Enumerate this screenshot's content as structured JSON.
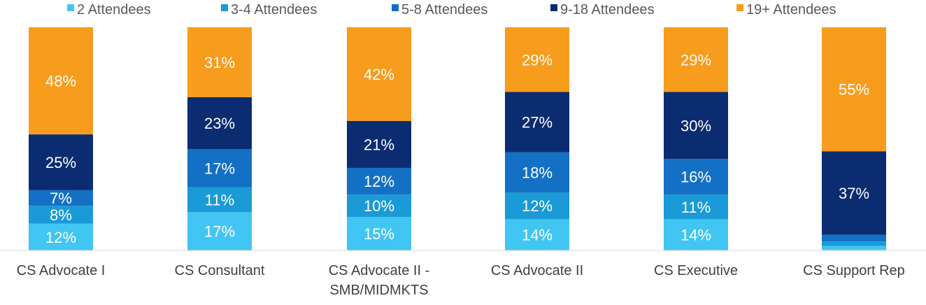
{
  "chart_data": {
    "type": "bar",
    "stacked": true,
    "percent_stacked": true,
    "legend_position": "top",
    "categories": [
      [
        "CS Advocate I"
      ],
      [
        "CS Consultant"
      ],
      [
        "CS Advocate II -",
        "SMB/MIDMKTS"
      ],
      [
        "CS Advocate II"
      ],
      [
        "CS Executive"
      ],
      [
        "CS Support Rep"
      ]
    ],
    "series": [
      {
        "name": "2 Attendees",
        "color": "#41c5f2",
        "label_color": "#ffffff",
        "values": [
          12,
          17,
          15,
          14,
          14,
          2
        ],
        "labels": [
          "12%",
          "17%",
          "15%",
          "14%",
          "14%",
          ""
        ]
      },
      {
        "name": "3-4 Attendees",
        "color": "#1a9ad6",
        "label_color": "#ffffff",
        "values": [
          8,
          11,
          10,
          12,
          11,
          2
        ],
        "labels": [
          "8%",
          "11%",
          "10%",
          "12%",
          "11%",
          ""
        ]
      },
      {
        "name": "5-8 Attendees",
        "color": "#1470c4",
        "label_color": "#ffffff",
        "values": [
          7,
          17,
          12,
          18,
          16,
          3
        ],
        "labels": [
          "7%",
          "17%",
          "12%",
          "18%",
          "16%",
          ""
        ]
      },
      {
        "name": "9-18 Attendees",
        "color": "#0b2c70",
        "label_color": "#ffffff",
        "values": [
          25,
          23,
          21,
          27,
          30,
          37
        ],
        "labels": [
          "25%",
          "23%",
          "21%",
          "27%",
          "30%",
          "37%"
        ]
      },
      {
        "name": "19+ Attendees",
        "color": "#f79c1d",
        "label_color": "#ffffff",
        "values": [
          48,
          31,
          42,
          29,
          29,
          55
        ],
        "labels": [
          "48%",
          "31%",
          "42%",
          "29%",
          "29%",
          "55%"
        ]
      }
    ]
  }
}
